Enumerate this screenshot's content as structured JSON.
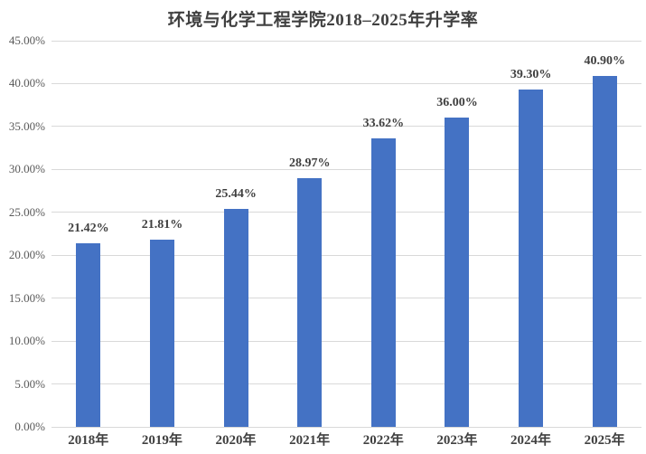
{
  "chart_data": {
    "type": "bar",
    "title": "环境与化学工程学院2018–2025年升学率",
    "categories": [
      "2018年",
      "2019年",
      "2020年",
      "2021年",
      "2022年",
      "2023年",
      "2024年",
      "2025年"
    ],
    "values": [
      21.42,
      21.81,
      25.44,
      28.97,
      33.62,
      36.0,
      39.3,
      40.9
    ],
    "data_labels": [
      "21.42%",
      "21.81%",
      "25.44%",
      "28.97%",
      "33.62%",
      "36.00%",
      "39.30%",
      "40.90%"
    ],
    "xlabel": "",
    "ylabel": "",
    "ylim": [
      0,
      45
    ],
    "ytick_step": 5,
    "ytick_labels": [
      "0.00%",
      "5.00%",
      "10.00%",
      "15.00%",
      "20.00%",
      "25.00%",
      "30.00%",
      "35.00%",
      "40.00%",
      "45.00%"
    ],
    "grid": true,
    "legend_position": "none",
    "colors": {
      "bar": "#4472C4",
      "gridline": "#D9D9D9",
      "ytick_text": "#595959",
      "xtick_text": "#404040",
      "data_label_text": "#3F3F3F",
      "title_text": "#404040",
      "background": "#FFFFFF"
    }
  }
}
